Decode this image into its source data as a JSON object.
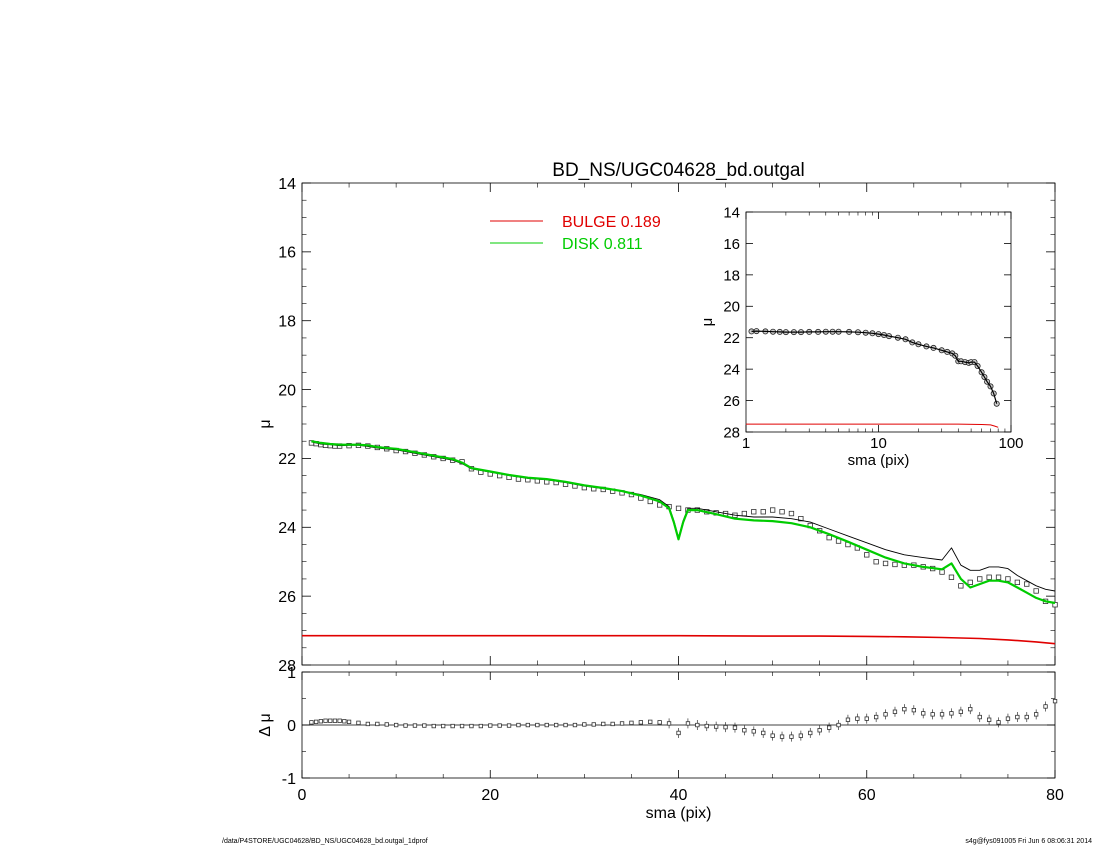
{
  "chart_data": [
    {
      "panel": "main",
      "type": "line",
      "title": "BD_NS/UGC04628_bd.outgal",
      "xlabel": "",
      "ylabel": "μ",
      "xlim": [
        0,
        80
      ],
      "ylim": [
        28,
        14
      ],
      "y_inverted": true,
      "x_ticks": [
        0,
        20,
        40,
        60,
        80
      ],
      "y_ticks": [
        14,
        16,
        18,
        20,
        22,
        24,
        26,
        28
      ],
      "tick_labels_shown": false,
      "legend": {
        "placement": "top-center",
        "entries": [
          {
            "label": "BULGE",
            "value": "0.189",
            "color": "#e00000"
          },
          {
            "label": "DISK",
            "value": "0.811",
            "color": "#00cc00"
          }
        ]
      },
      "series": [
        {
          "kind": "points",
          "marker": "square",
          "color": "#000000",
          "x": [
            1,
            1.5,
            2,
            2.5,
            3,
            3.5,
            4,
            5,
            6,
            7,
            8,
            9,
            10,
            11,
            12,
            13,
            14,
            15,
            16,
            17,
            18,
            19,
            20,
            21,
            22,
            23,
            24,
            25,
            26,
            27,
            28,
            29,
            30,
            31,
            32,
            33,
            34,
            35,
            36,
            37,
            38,
            39,
            40,
            41,
            42,
            43,
            44,
            45,
            46,
            47,
            48,
            49,
            50,
            51,
            52,
            53,
            54,
            55,
            56,
            57,
            58,
            59,
            60,
            61,
            62,
            63,
            64,
            65,
            66,
            67,
            68,
            69,
            70,
            71,
            72,
            73,
            74,
            75,
            76,
            77,
            78,
            79,
            80
          ],
          "y": [
            21.55,
            21.57,
            21.6,
            21.62,
            21.63,
            21.64,
            21.64,
            21.63,
            21.62,
            21.64,
            21.68,
            21.72,
            21.77,
            21.8,
            21.85,
            21.9,
            21.95,
            22.0,
            22.05,
            22.1,
            22.3,
            22.4,
            22.45,
            22.5,
            22.55,
            22.6,
            22.62,
            22.65,
            22.68,
            22.7,
            22.75,
            22.8,
            22.85,
            22.88,
            22.9,
            22.95,
            23.0,
            23.05,
            23.15,
            23.25,
            23.35,
            23.4,
            23.45,
            23.5,
            23.5,
            23.55,
            23.58,
            23.6,
            23.65,
            23.6,
            23.55,
            23.55,
            23.5,
            23.55,
            23.6,
            23.75,
            23.95,
            24.1,
            24.3,
            24.4,
            24.5,
            24.6,
            24.8,
            25.0,
            25.05,
            25.08,
            25.1,
            25.1,
            25.15,
            25.2,
            25.3,
            25.45,
            25.7,
            25.6,
            25.5,
            25.45,
            25.45,
            25.5,
            25.6,
            25.65,
            25.85,
            26.15,
            26.25
          ]
        },
        {
          "kind": "line",
          "name": "total",
          "color": "#000000",
          "x": [
            1,
            2,
            3,
            4,
            5,
            6,
            7,
            8,
            10,
            12,
            14,
            16,
            17,
            18,
            20,
            22,
            24,
            26,
            28,
            30,
            32,
            34,
            36,
            38,
            39,
            39.5,
            40,
            40.5,
            41,
            42,
            44,
            46,
            48,
            50,
            52,
            54,
            56,
            58,
            60,
            62,
            64,
            66,
            68,
            69,
            70,
            71,
            72,
            73,
            74,
            75,
            76,
            77,
            78,
            79,
            80
          ],
          "y": [
            21.52,
            21.58,
            21.6,
            21.63,
            21.62,
            21.62,
            21.65,
            21.7,
            21.75,
            21.85,
            21.95,
            22.05,
            22.15,
            22.3,
            22.4,
            22.5,
            22.58,
            22.62,
            22.7,
            22.8,
            22.88,
            22.95,
            23.05,
            23.2,
            23.4,
            23.8,
            24.3,
            23.8,
            23.45,
            23.45,
            23.55,
            23.65,
            23.7,
            23.7,
            23.75,
            23.85,
            24.05,
            24.25,
            24.45,
            24.65,
            24.8,
            24.88,
            24.95,
            24.6,
            25.1,
            25.25,
            25.25,
            25.15,
            25.15,
            25.2,
            25.4,
            25.55,
            25.7,
            25.8,
            25.85
          ]
        },
        {
          "kind": "line",
          "name": "DISK",
          "color": "#00cc00",
          "x": [
            1,
            2,
            3,
            4,
            5,
            6,
            7,
            8,
            10,
            12,
            14,
            16,
            17,
            18,
            20,
            22,
            24,
            26,
            28,
            30,
            32,
            34,
            36,
            38,
            39,
            39.5,
            40,
            40.5,
            41,
            42,
            44,
            46,
            48,
            50,
            52,
            54,
            56,
            58,
            60,
            62,
            64,
            66,
            68,
            69,
            70,
            71,
            72,
            73,
            74,
            75,
            76,
            77,
            78,
            79,
            80
          ],
          "y": [
            21.5,
            21.55,
            21.58,
            21.6,
            21.6,
            21.6,
            21.62,
            21.67,
            21.72,
            21.82,
            21.92,
            22.02,
            22.12,
            22.28,
            22.38,
            22.48,
            22.56,
            22.6,
            22.68,
            22.78,
            22.86,
            22.95,
            23.08,
            23.25,
            23.45,
            23.85,
            24.35,
            23.85,
            23.5,
            23.5,
            23.62,
            23.75,
            23.8,
            23.82,
            23.88,
            24.0,
            24.2,
            24.42,
            24.65,
            24.88,
            25.05,
            25.15,
            25.22,
            25.05,
            25.5,
            25.75,
            25.65,
            25.55,
            25.55,
            25.6,
            25.75,
            25.9,
            26.05,
            26.15,
            26.2
          ]
        },
        {
          "kind": "line",
          "name": "BULGE",
          "color": "#e00000",
          "x": [
            0,
            10,
            20,
            30,
            40,
            50,
            55,
            60,
            64,
            68,
            72,
            75,
            78,
            80
          ],
          "y": [
            27.15,
            27.15,
            27.15,
            27.15,
            27.15,
            27.16,
            27.16,
            27.17,
            27.18,
            27.2,
            27.23,
            27.27,
            27.33,
            27.38
          ]
        }
      ]
    },
    {
      "panel": "inset",
      "type": "line",
      "xlabel": "sma (pix)",
      "ylabel": "μ",
      "x_scale": "log",
      "xlim": [
        1,
        100
      ],
      "ylim": [
        28,
        14
      ],
      "y_inverted": true,
      "x_ticks": [
        1,
        10,
        100
      ],
      "x_tick_labels": [
        "1",
        "10",
        "100"
      ],
      "y_ticks": [
        14,
        16,
        18,
        20,
        22,
        24,
        26,
        28
      ],
      "y_tick_labels": [
        "14",
        "16",
        "18",
        "20",
        "22",
        "24",
        "26",
        "28"
      ],
      "series": [
        {
          "kind": "points",
          "marker": "circle",
          "color": "#000000",
          "x": [
            1.1,
            1.2,
            1.4,
            1.6,
            1.8,
            2,
            2.3,
            2.6,
            3,
            3.5,
            4,
            4.5,
            5,
            6,
            7,
            8,
            9,
            10,
            11,
            12,
            14,
            16,
            18,
            20,
            23,
            26,
            30,
            33,
            36,
            38,
            40,
            42,
            45,
            48,
            50,
            53,
            56,
            60,
            63,
            66,
            70,
            74,
            78
          ],
          "y": [
            21.6,
            21.58,
            21.6,
            21.62,
            21.63,
            21.64,
            21.64,
            21.64,
            21.63,
            21.63,
            21.62,
            21.62,
            21.62,
            21.63,
            21.65,
            21.68,
            21.72,
            21.77,
            21.83,
            21.9,
            22.0,
            22.1,
            22.3,
            22.42,
            22.55,
            22.65,
            22.8,
            22.9,
            23.0,
            23.15,
            23.5,
            23.5,
            23.55,
            23.6,
            23.55,
            23.55,
            23.8,
            24.2,
            24.5,
            24.8,
            25.1,
            25.55,
            26.2
          ]
        },
        {
          "kind": "line",
          "name": "BULGE",
          "color": "#e00000",
          "x": [
            1,
            2,
            5,
            10,
            20,
            40,
            60,
            70,
            75,
            80
          ],
          "y": [
            27.5,
            27.5,
            27.5,
            27.5,
            27.5,
            27.5,
            27.52,
            27.55,
            27.62,
            27.7
          ]
        }
      ]
    },
    {
      "panel": "residual",
      "type": "scatter",
      "xlabel": "sma (pix)",
      "ylabel": "Δ μ",
      "xlim": [
        0,
        80
      ],
      "ylim": [
        -1,
        1
      ],
      "x_ticks": [
        0,
        20,
        40,
        60,
        80
      ],
      "x_tick_labels": [
        "0",
        "20",
        "40",
        "60",
        "80"
      ],
      "y_ticks": [
        -1,
        0,
        1
      ],
      "y_tick_labels": [
        "-1",
        "0",
        "1"
      ],
      "zero_line": true,
      "series": [
        {
          "kind": "points",
          "marker": "square",
          "color": "#000000",
          "x": [
            1,
            1.5,
            2,
            2.5,
            3,
            3.5,
            4,
            4.5,
            5,
            6,
            7,
            8,
            9,
            10,
            11,
            12,
            13,
            14,
            15,
            16,
            17,
            18,
            19,
            20,
            21,
            22,
            23,
            24,
            25,
            26,
            27,
            28,
            29,
            30,
            31,
            32,
            33,
            34,
            35,
            36,
            37,
            38,
            39,
            40,
            41,
            42,
            43,
            44,
            45,
            46,
            47,
            48,
            49,
            50,
            51,
            52,
            53,
            54,
            55,
            56,
            57,
            58,
            59,
            60,
            61,
            62,
            63,
            64,
            65,
            66,
            67,
            68,
            69,
            70,
            71,
            72,
            73,
            74,
            75,
            76,
            77,
            78,
            79,
            80
          ],
          "y": [
            0.05,
            0.06,
            0.07,
            0.08,
            0.08,
            0.08,
            0.08,
            0.07,
            0.06,
            0.04,
            0.02,
            0.02,
            0.01,
            0.0,
            -0.01,
            -0.01,
            -0.01,
            -0.02,
            -0.02,
            -0.02,
            -0.02,
            -0.02,
            -0.02,
            -0.01,
            -0.01,
            -0.01,
            0.0,
            0.0,
            0.0,
            0.0,
            0.0,
            0.0,
            0.0,
            0.01,
            0.01,
            0.02,
            0.02,
            0.03,
            0.04,
            0.05,
            0.06,
            0.05,
            0.03,
            -0.15,
            0.03,
            0.0,
            -0.02,
            -0.03,
            -0.04,
            -0.05,
            -0.1,
            -0.12,
            -0.15,
            -0.2,
            -0.22,
            -0.22,
            -0.2,
            -0.15,
            -0.1,
            -0.05,
            0.0,
            0.1,
            0.12,
            0.12,
            0.15,
            0.2,
            0.25,
            0.3,
            0.28,
            0.22,
            0.2,
            0.2,
            0.22,
            0.25,
            0.3,
            0.15,
            0.1,
            0.05,
            0.12,
            0.15,
            0.15,
            0.2,
            0.35,
            0.45
          ]
        }
      ]
    }
  ],
  "footer": {
    "left": "/data/P4STORE/UGC04628/BD_NS/UGC04628_bd.outgal_1dprof",
    "right": "s4g@fys091005  Fri Jun  6 08:06:31 2014"
  }
}
